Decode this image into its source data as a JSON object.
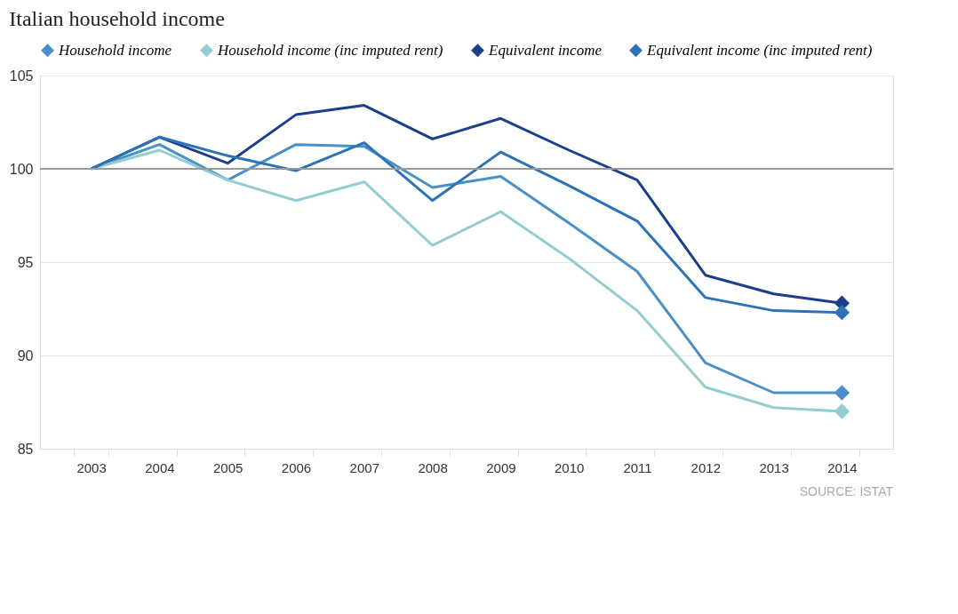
{
  "chart_data": {
    "type": "line",
    "title": "Italian household income",
    "categories": [
      "2003",
      "2004",
      "2005",
      "2006",
      "2007",
      "2008",
      "2009",
      "2010",
      "2011",
      "2012",
      "2013",
      "2014"
    ],
    "series": [
      {
        "name": "Household income",
        "color": "#4a90c8",
        "values": [
          100,
          101.3,
          99.4,
          101.3,
          101.2,
          99.0,
          99.6,
          97.1,
          94.5,
          89.6,
          88.0,
          88.0
        ]
      },
      {
        "name": "Household income (inc imputed rent)",
        "color": "#93cdcf",
        "values": [
          100,
          101.0,
          99.4,
          98.3,
          99.3,
          95.9,
          97.7,
          95.2,
          92.4,
          88.3,
          87.2,
          87.0
        ]
      },
      {
        "name": "Equivalent income",
        "color": "#1b3f8b",
        "values": [
          100,
          101.7,
          100.3,
          102.9,
          103.4,
          101.6,
          102.7,
          101.0,
          99.4,
          94.3,
          93.3,
          92.8
        ]
      },
      {
        "name": "Equivalent income (inc imputed rent)",
        "color": "#2b73b6",
        "values": [
          100,
          101.7,
          100.7,
          99.9,
          101.4,
          98.3,
          100.9,
          99.1,
          97.2,
          93.1,
          92.4,
          92.3
        ]
      }
    ],
    "ylim": [
      85,
      105
    ],
    "yticks": [
      85,
      90,
      95,
      100,
      105
    ],
    "grid": "y",
    "legend": "top",
    "line_style": "solid",
    "ref_lines": [
      {
        "axis": "y",
        "value": 100,
        "color": "#999999"
      }
    ],
    "annotations": [
      "SOURCE: ISTAT"
    ]
  }
}
